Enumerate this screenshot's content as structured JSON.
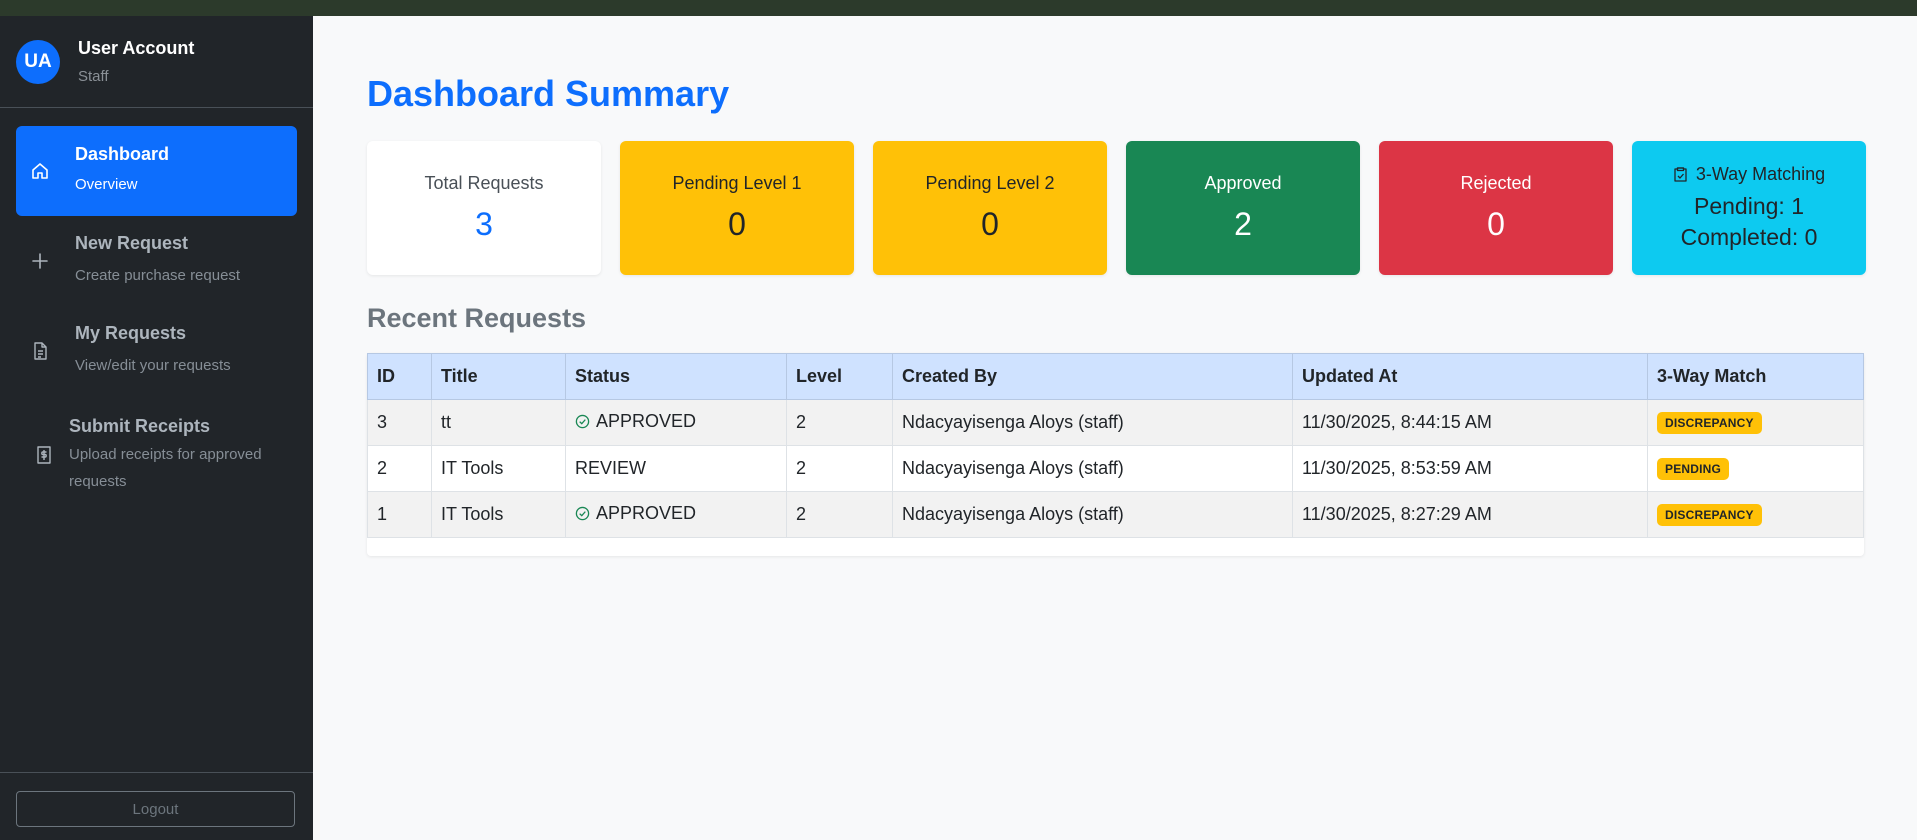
{
  "user": {
    "initials": "UA",
    "name": "User Account",
    "role": "Staff"
  },
  "nav": [
    {
      "title": "Dashboard",
      "sub": "Overview",
      "icon": "home-icon"
    },
    {
      "title": "New Request",
      "sub": "Create purchase request",
      "icon": "plus-icon"
    },
    {
      "title": "My Requests",
      "sub": "View/edit your requests",
      "icon": "document-icon"
    },
    {
      "title": "Submit Receipts",
      "sub": "Upload receipts for approved requests",
      "icon": "receipt-icon"
    }
  ],
  "logout_label": "Logout",
  "page_title": "Dashboard Summary",
  "cards": {
    "total": {
      "label": "Total Requests",
      "value": "3"
    },
    "pending1": {
      "label": "Pending Level 1",
      "value": "0"
    },
    "pending2": {
      "label": "Pending Level 2",
      "value": "0"
    },
    "approved": {
      "label": "Approved",
      "value": "2"
    },
    "rejected": {
      "label": "Rejected",
      "value": "0"
    },
    "matching": {
      "label": "3-Way Matching",
      "pending": "Pending: 1",
      "completed": "Completed: 0",
      "icon": "clipboard-check-icon"
    }
  },
  "recent_title": "Recent Requests",
  "table": {
    "headers": [
      "ID",
      "Title",
      "Status",
      "Level",
      "Created By",
      "Updated At",
      "3-Way Match"
    ],
    "rows": [
      {
        "id": "3",
        "title": "tt",
        "status": "APPROVED",
        "level": "2",
        "created_by": "Ndacyayisenga Aloys (staff)",
        "updated_at": "11/30/2025, 8:44:15 AM",
        "match": "DISCREPANCY"
      },
      {
        "id": "2",
        "title": "IT Tools",
        "status": "REVIEW",
        "level": "2",
        "created_by": "Ndacyayisenga Aloys (staff)",
        "updated_at": "11/30/2025, 8:53:59 AM",
        "match": "PENDING"
      },
      {
        "id": "1",
        "title": "IT Tools",
        "status": "APPROVED",
        "level": "2",
        "created_by": "Ndacyayisenga Aloys (staff)",
        "updated_at": "11/30/2025, 8:27:29 AM",
        "match": "DISCREPANCY"
      }
    ]
  },
  "colors": {
    "primary": "#0d6efd",
    "sidebar": "#212529",
    "warning": "#ffc107",
    "success": "#198754",
    "danger": "#dc3545",
    "info": "#0dcaf0",
    "table_header": "#cfe2ff"
  }
}
